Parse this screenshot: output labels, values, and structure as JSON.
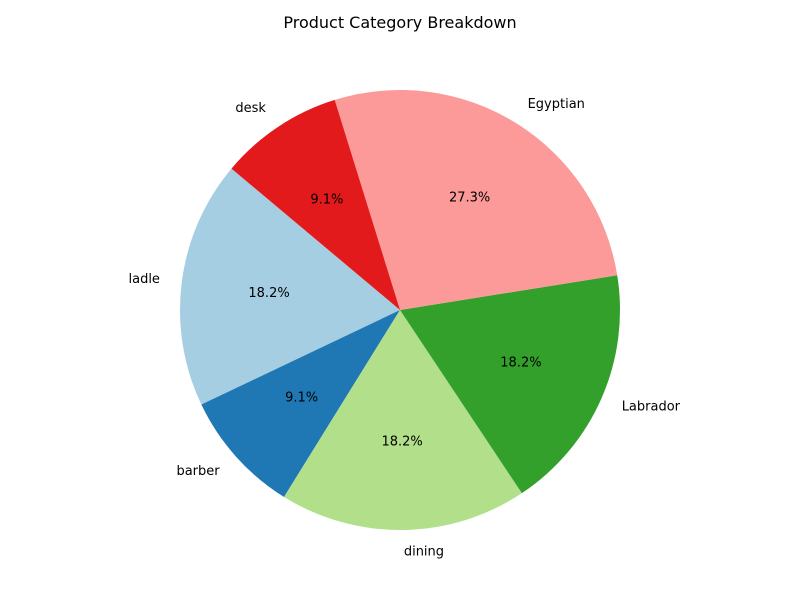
{
  "chart_data": {
    "type": "pie",
    "title": "Product Category Breakdown",
    "start_angle_deg": 140,
    "direction": "counterclockwise",
    "slices": [
      {
        "label": "ladle",
        "value": 18.2,
        "pct_label": "18.2%",
        "color": "#a6cee3"
      },
      {
        "label": "barber",
        "value": 9.1,
        "pct_label": "9.1%",
        "color": "#1f78b4"
      },
      {
        "label": "dining",
        "value": 18.2,
        "pct_label": "18.2%",
        "color": "#b2df8a"
      },
      {
        "label": "Labrador",
        "value": 18.2,
        "pct_label": "18.2%",
        "color": "#33a02c"
      },
      {
        "label": "Egyptian",
        "value": 27.3,
        "pct_label": "27.3%",
        "color": "#fb9a99"
      },
      {
        "label": "desk",
        "value": 9.1,
        "pct_label": "9.1%",
        "color": "#e31a1c"
      }
    ]
  }
}
